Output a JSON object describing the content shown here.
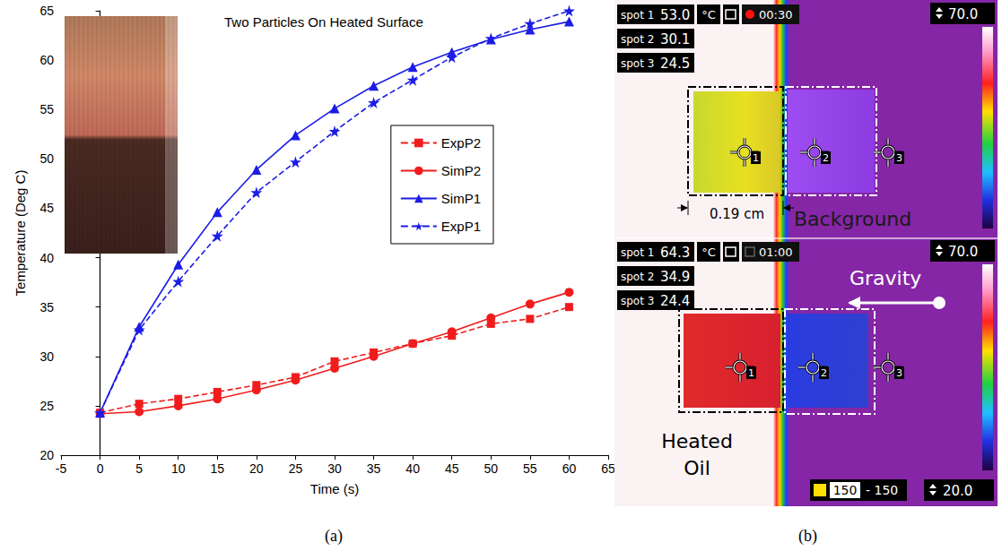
{
  "chart_data": {
    "type": "line",
    "title": "Two Particles On Heated Surface",
    "x_label": "Time (s)",
    "y_label": "Temperature (Deg C)",
    "x": [
      0,
      5,
      10,
      15,
      20,
      25,
      30,
      35,
      40,
      45,
      50,
      55,
      60
    ],
    "series": [
      {
        "name": "ExpP2",
        "color": "#f01c1c",
        "marker": "square",
        "line_style": "dashed",
        "values": [
          24.3,
          25.2,
          25.7,
          26.4,
          27.1,
          27.9,
          29.5,
          30.4,
          31.3,
          32.1,
          33.3,
          33.8,
          35.0
        ]
      },
      {
        "name": "SimP2",
        "color": "#f01c1c",
        "marker": "circle",
        "line_style": "solid",
        "values": [
          24.2,
          24.4,
          25.0,
          25.7,
          26.6,
          27.6,
          28.8,
          30.0,
          31.3,
          32.5,
          33.9,
          35.3,
          36.5
        ]
      },
      {
        "name": "SimP1",
        "color": "#1c1ce6",
        "marker": "triangle",
        "line_style": "solid",
        "values": [
          24.3,
          33.0,
          39.3,
          44.6,
          48.9,
          52.4,
          55.1,
          57.4,
          59.3,
          60.8,
          62.1,
          63.1,
          63.9
        ]
      },
      {
        "name": "ExpP1",
        "color": "#1c1ce6",
        "marker": "star",
        "line_style": "dashed",
        "values": [
          24.3,
          32.7,
          37.6,
          42.2,
          46.6,
          49.7,
          52.8,
          55.7,
          58.0,
          60.3,
          62.2,
          63.7,
          65.0
        ]
      }
    ],
    "xlim": [
      -5,
      65
    ],
    "xticks": [
      -5,
      0,
      5,
      10,
      15,
      20,
      25,
      30,
      35,
      40,
      45,
      50,
      55,
      60,
      65
    ],
    "ylim": [
      20,
      65
    ],
    "yticks": [
      20,
      25,
      30,
      35,
      40,
      45,
      50,
      55,
      60,
      65
    ],
    "grid": false,
    "legend": "right"
  },
  "panel_labels": [
    "(a)",
    "(b)"
  ],
  "thermal_image": {
    "frames": [
      {
        "spots": [
          {
            "label": "spot 1",
            "reading": "53.0"
          },
          {
            "label": "spot 2",
            "reading": "30.1"
          },
          {
            "label": "spot 3",
            "reading": "24.5"
          }
        ],
        "unit": "°C",
        "time": "00:30",
        "scale_max": "70.0",
        "markers": [
          "1",
          "2",
          "3"
        ]
      },
      {
        "spots": [
          {
            "label": "spot 1",
            "reading": "64.3"
          },
          {
            "label": "spot 2",
            "reading": "34.9"
          },
          {
            "label": "spot 3",
            "reading": "24.4"
          }
        ],
        "unit": "°C",
        "time": "01:00",
        "scale_max": "70.0",
        "scale_min": "20.0",
        "palette_range": {
          "low": "150",
          "separator": "-",
          "high": "150"
        },
        "markers": [
          "1",
          "2",
          "3"
        ]
      }
    ],
    "gap_label": "0.19 cm",
    "background_label": "Background",
    "gravity_label": "Gravity",
    "oil_label": "Heated Oil"
  }
}
